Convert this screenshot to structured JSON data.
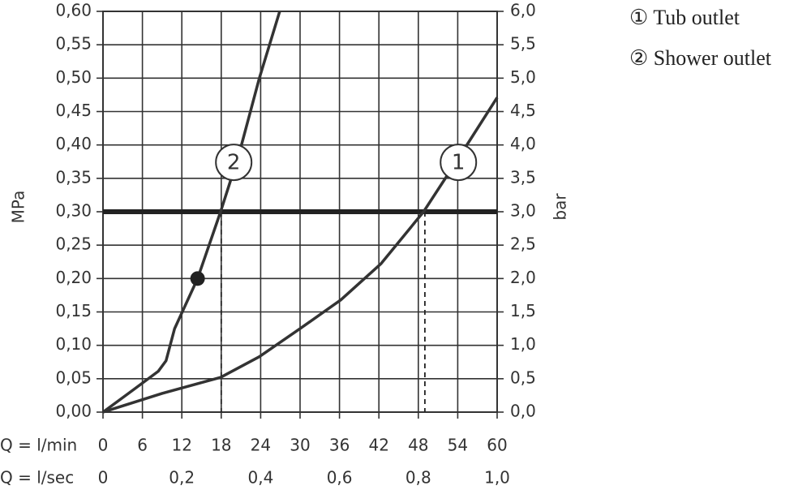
{
  "chart_data": {
    "type": "line",
    "xlabel": "Q = l/min",
    "x2label": "Q = l/sec",
    "ylabel": "MPa",
    "y2label": "bar",
    "xlim": [
      0,
      60
    ],
    "xticks": [
      0,
      6,
      12,
      18,
      24,
      30,
      36,
      42,
      48,
      54,
      60
    ],
    "x2lim": [
      0,
      1
    ],
    "x2ticks": [
      0,
      {
        "value": 0.2,
        "label": "0,2"
      },
      {
        "value": 0.4,
        "label": "0,4"
      },
      {
        "value": 0.6,
        "label": "0,6"
      },
      {
        "value": 0.8,
        "label": "0,8"
      },
      {
        "value": 1,
        "label": "1,0"
      }
    ],
    "ylim": [
      0,
      0.6
    ],
    "yticks": [
      {
        "value": 0,
        "label": "0,00"
      },
      {
        "value": 0.05,
        "label": "0,05"
      },
      {
        "value": 0.1,
        "label": "0,10"
      },
      {
        "value": 0.15,
        "label": "0,15"
      },
      {
        "value": 0.2,
        "label": "0,20"
      },
      {
        "value": 0.25,
        "label": "0,25"
      },
      {
        "value": 0.3,
        "label": "0,30"
      },
      {
        "value": 0.35,
        "label": "0,35"
      },
      {
        "value": 0.4,
        "label": "0,40"
      },
      {
        "value": 0.45,
        "label": "0,45"
      },
      {
        "value": 0.5,
        "label": "0,50"
      },
      {
        "value": 0.55,
        "label": "0,55"
      },
      {
        "value": 0.6,
        "label": "0,60"
      }
    ],
    "y2lim": [
      0,
      6
    ],
    "y2ticks": [
      {
        "value": 0,
        "label": "0,0"
      },
      {
        "value": 0.5,
        "label": "0,5"
      },
      {
        "value": 1,
        "label": "1,0"
      },
      {
        "value": 1.5,
        "label": "1,5"
      },
      {
        "value": 2,
        "label": "2,0"
      },
      {
        "value": 2.5,
        "label": "2,5"
      },
      {
        "value": 3,
        "label": "3,0"
      },
      {
        "value": 3.5,
        "label": "3,5"
      },
      {
        "value": 4,
        "label": "4,0"
      },
      {
        "value": 4.5,
        "label": "4,5"
      },
      {
        "value": 5,
        "label": "5,0"
      },
      {
        "value": 5.5,
        "label": "5,5"
      },
      {
        "value": 6,
        "label": "6,0"
      }
    ],
    "grid": true,
    "color": "#333333",
    "series": [
      {
        "name": "① Tub outlet",
        "label": "1",
        "label_x": 54.1,
        "label_y": 0.374,
        "x": [
          0,
          9.0,
          17.9,
          23.8,
          30,
          36.2,
          42.3,
          48.8,
          54.1,
          60
        ],
        "values": [
          0,
          0.028,
          0.052,
          0.083,
          0.125,
          0.168,
          0.222,
          0.3,
          0.38,
          0.471
        ]
      },
      {
        "name": "② Shower outlet",
        "label": "2",
        "label_x": 19.9,
        "label_y": 0.374,
        "x": [
          0,
          4.7,
          8.4,
          9.6,
          10.9,
          14.4,
          17.9,
          20.7,
          23.8,
          26.9
        ],
        "values": [
          0,
          0.034,
          0.061,
          0.077,
          0.125,
          0.2,
          0.3,
          0.386,
          0.5,
          0.6
        ]
      }
    ],
    "point": {
      "x": 14.4,
      "y": 0.2
    },
    "hline": 0.3,
    "dashed_x": [
      18,
      49
    ]
  }
}
